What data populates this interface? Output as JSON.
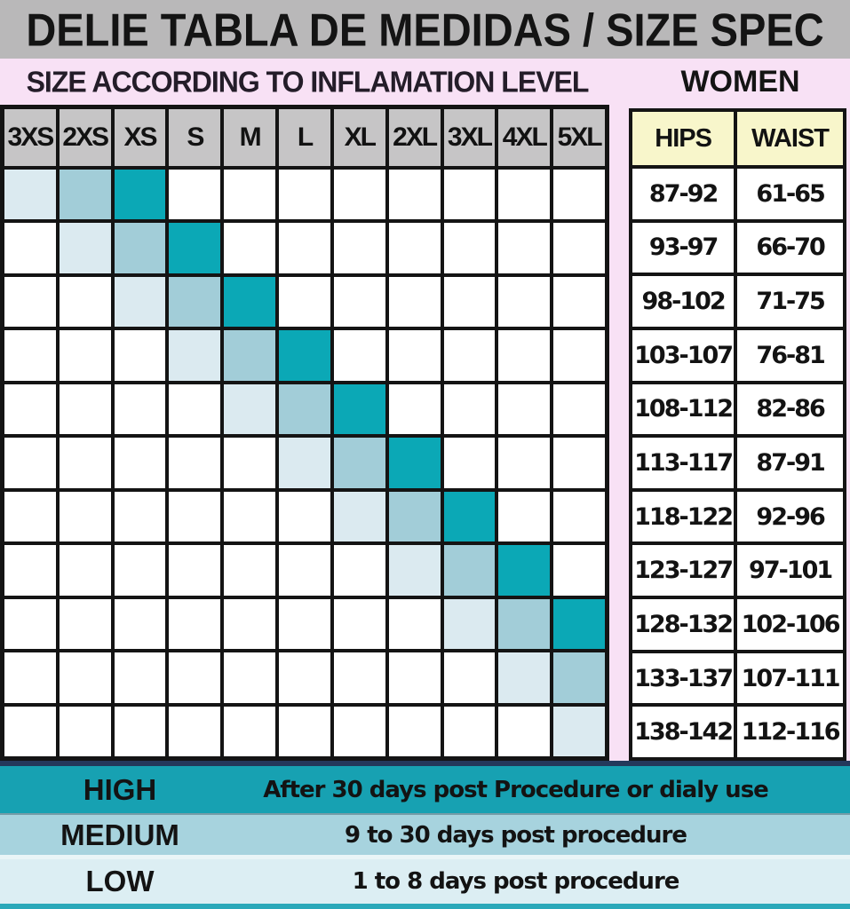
{
  "title": "DELIE TABLA DE MEDIDAS / SIZE SPEC",
  "subheader": {
    "left": "SIZE ACCORDING TO INFLAMATION LEVEL",
    "right": "WOMEN"
  },
  "size_grid": {
    "columns": [
      "3XS",
      "2XS",
      "XS",
      "S",
      "M",
      "L",
      "XL",
      "2XL",
      "3XL",
      "4XL",
      "5XL"
    ],
    "cells": [
      [
        "low",
        "medium",
        "high",
        "",
        "",
        "",
        "",
        "",
        "",
        "",
        ""
      ],
      [
        "",
        "low",
        "medium",
        "high",
        "",
        "",
        "",
        "",
        "",
        "",
        ""
      ],
      [
        "",
        "",
        "low",
        "medium",
        "high",
        "",
        "",
        "",
        "",
        "",
        ""
      ],
      [
        "",
        "",
        "",
        "low",
        "medium",
        "high",
        "",
        "",
        "",
        "",
        ""
      ],
      [
        "",
        "",
        "",
        "",
        "low",
        "medium",
        "high",
        "",
        "",
        "",
        ""
      ],
      [
        "",
        "",
        "",
        "",
        "",
        "low",
        "medium",
        "high",
        "",
        "",
        ""
      ],
      [
        "",
        "",
        "",
        "",
        "",
        "",
        "low",
        "medium",
        "high",
        "",
        ""
      ],
      [
        "",
        "",
        "",
        "",
        "",
        "",
        "",
        "low",
        "medium",
        "high",
        ""
      ],
      [
        "",
        "",
        "",
        "",
        "",
        "",
        "",
        "",
        "low",
        "medium",
        "high"
      ],
      [
        "",
        "",
        "",
        "",
        "",
        "",
        "",
        "",
        "",
        "low",
        "medium"
      ],
      [
        "",
        "",
        "",
        "",
        "",
        "",
        "",
        "",
        "",
        "",
        "low"
      ]
    ]
  },
  "measurements": {
    "headers": [
      "HIPS",
      "WAIST"
    ],
    "rows": [
      [
        "87-92",
        "61-65"
      ],
      [
        "93-97",
        "66-70"
      ],
      [
        "98-102",
        "71-75"
      ],
      [
        "103-107",
        "76-81"
      ],
      [
        "108-112",
        "82-86"
      ],
      [
        "113-117",
        "87-91"
      ],
      [
        "118-122",
        "92-96"
      ],
      [
        "123-127",
        "97-101"
      ],
      [
        "128-132",
        "102-106"
      ],
      [
        "133-137",
        "107-111"
      ],
      [
        "138-142",
        "112-116"
      ]
    ]
  },
  "legend": [
    {
      "level": "HIGH",
      "description": "After 30 days post Procedure or dialy use",
      "color_key": "legend_high_bg"
    },
    {
      "level": "MEDIUM",
      "description": "9 to 30 days post procedure",
      "color_key": "legend_medium_bg"
    },
    {
      "level": "LOW",
      "description": "1 to 8 days post procedure",
      "color_key": "legend_low_bg"
    }
  ],
  "colors": {
    "banner_bg": "#b9b8b9",
    "pink_bg": "#f8e1f5",
    "size_header_bg": "#c6c5c6",
    "measure_header_bg": "#f8f6cb",
    "cell_low": "#dbeaf0",
    "cell_medium": "#a2cdd8",
    "cell_high": "#0ba8b6",
    "legend_high_bg": "#17a1b2",
    "legend_medium_bg": "#a7d3de",
    "legend_low_bg": "#dceef3",
    "navy_line": "#24395b",
    "bottom_strip": "#2aa8b9",
    "grid_border": "#141414"
  },
  "chart_data": [
    {
      "type": "heatmap",
      "title": "SIZE ACCORDING TO INFLAMATION LEVEL",
      "x_labels": [
        "3XS",
        "2XS",
        "XS",
        "S",
        "M",
        "L",
        "XL",
        "2XL",
        "3XL",
        "4XL",
        "5XL"
      ],
      "rows": 11,
      "matrix": [
        [
          "low",
          "medium",
          "high",
          "",
          "",
          "",
          "",
          "",
          "",
          "",
          ""
        ],
        [
          "",
          "low",
          "medium",
          "high",
          "",
          "",
          "",
          "",
          "",
          "",
          ""
        ],
        [
          "",
          "",
          "low",
          "medium",
          "high",
          "",
          "",
          "",
          "",
          "",
          ""
        ],
        [
          "",
          "",
          "",
          "low",
          "medium",
          "high",
          "",
          "",
          "",
          "",
          ""
        ],
        [
          "",
          "",
          "",
          "",
          "low",
          "medium",
          "high",
          "",
          "",
          "",
          ""
        ],
        [
          "",
          "",
          "",
          "",
          "",
          "low",
          "medium",
          "high",
          "",
          "",
          ""
        ],
        [
          "",
          "",
          "",
          "",
          "",
          "",
          "low",
          "medium",
          "high",
          "",
          ""
        ],
        [
          "",
          "",
          "",
          "",
          "",
          "",
          "",
          "low",
          "medium",
          "high",
          ""
        ],
        [
          "",
          "",
          "",
          "",
          "",
          "",
          "",
          "",
          "low",
          "medium",
          "high"
        ],
        [
          "",
          "",
          "",
          "",
          "",
          "",
          "",
          "",
          "",
          "low",
          "medium"
        ],
        [
          "",
          "",
          "",
          "",
          "",
          "",
          "",
          "",
          "",
          "",
          "low"
        ]
      ],
      "value_colors": {
        "low": "#dbeaf0",
        "medium": "#a2cdd8",
        "high": "#0ba8b6"
      },
      "legend": [
        {
          "label": "HIGH",
          "meaning": "After 30 days post Procedure or dialy use"
        },
        {
          "label": "MEDIUM",
          "meaning": "9 to 30 days post procedure"
        },
        {
          "label": "LOW",
          "meaning": "1 to 8 days post procedure"
        }
      ]
    },
    {
      "type": "table",
      "title": "WOMEN",
      "columns": [
        "HIPS",
        "WAIST"
      ],
      "rows": [
        [
          "87-92",
          "61-65"
        ],
        [
          "93-97",
          "66-70"
        ],
        [
          "98-102",
          "71-75"
        ],
        [
          "103-107",
          "76-81"
        ],
        [
          "108-112",
          "82-86"
        ],
        [
          "113-117",
          "87-91"
        ],
        [
          "118-122",
          "92-96"
        ],
        [
          "123-127",
          "97-101"
        ],
        [
          "128-132",
          "102-106"
        ],
        [
          "133-137",
          "107-111"
        ],
        [
          "138-142",
          "112-116"
        ]
      ]
    }
  ]
}
